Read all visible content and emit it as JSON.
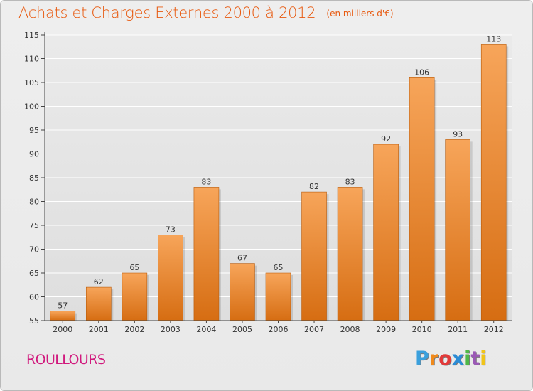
{
  "header": {
    "title": "Achats et Charges Externes 2000 à 2012",
    "subtitle": "(en milliers d'€)"
  },
  "footer": {
    "commune": "ROULLOURS",
    "logo_letters": [
      "P",
      "r",
      "o",
      "x",
      "i",
      "t",
      "i"
    ],
    "logo_colors": [
      "#3aa0dd",
      "#f08a1c",
      "#e23a3a",
      "#2b8cd6",
      "#4fb848",
      "#9b59b6",
      "#f0c419"
    ]
  },
  "colors": {
    "bar_top": "#f7a55a",
    "bar_bottom": "#d66d12",
    "bar_edge": "#b85b0a",
    "axis": "#444444",
    "grid": "#ffffff",
    "text": "#333333"
  },
  "chart_data": {
    "type": "bar",
    "categories": [
      "2000",
      "2001",
      "2002",
      "2003",
      "2004",
      "2005",
      "2006",
      "2007",
      "2008",
      "2009",
      "2010",
      "2011",
      "2012"
    ],
    "values": [
      57,
      62,
      65,
      73,
      83,
      67,
      65,
      82,
      83,
      92,
      106,
      93,
      113
    ],
    "title": "Achats et Charges Externes 2000 à 2012",
    "subtitle": "(en milliers d'€)",
    "xlabel": "",
    "ylabel": "",
    "ylim": [
      55,
      115
    ],
    "yticks": [
      55,
      60,
      65,
      70,
      75,
      80,
      85,
      90,
      95,
      100,
      105,
      110,
      115
    ],
    "grid": true,
    "data_labels": true
  }
}
